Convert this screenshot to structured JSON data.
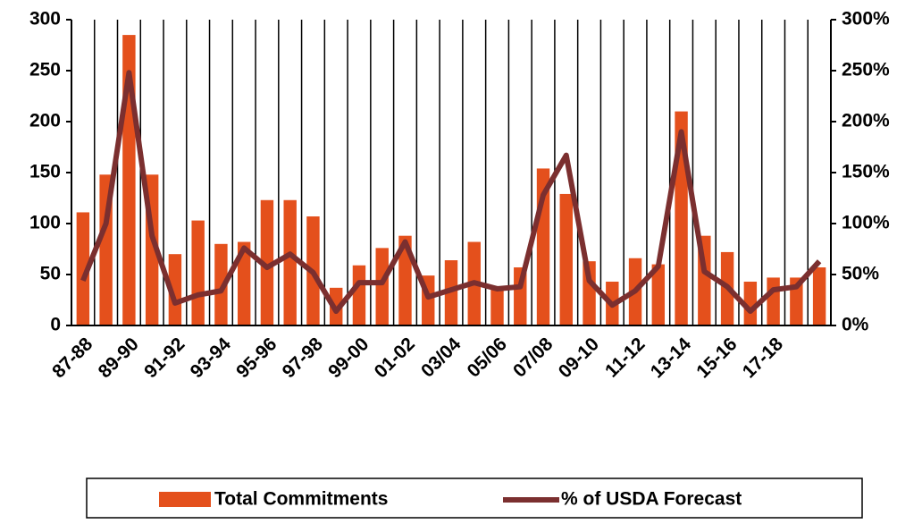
{
  "chart_data": {
    "type": "bar",
    "categories": [
      "87-88",
      null,
      "89-90",
      null,
      "91-92",
      null,
      "93-94",
      null,
      "95-96",
      null,
      "97-98",
      null,
      "99-00",
      null,
      "01-02",
      null,
      "03/04",
      null,
      "05/06",
      null,
      "07/08",
      null,
      "09-10",
      null,
      "11-12",
      null,
      "13-14",
      null,
      "15-16",
      null,
      "17-18",
      null,
      null
    ],
    "series": [
      {
        "name": "Total Commitments",
        "color": "#e4501c",
        "values": [
          111,
          148,
          285,
          148,
          70,
          103,
          80,
          82,
          123,
          123,
          107,
          37,
          59,
          76,
          88,
          49,
          64,
          82,
          38,
          57,
          154,
          129,
          63,
          43,
          66,
          60,
          210,
          88,
          72,
          43,
          47,
          47,
          57
        ]
      },
      {
        "name": "% of USDA Forecast",
        "color": "#7b2f2f",
        "axis": "y2",
        "values": [
          44,
          100,
          248,
          88,
          22,
          30,
          34,
          76,
          57,
          70,
          52,
          14,
          42,
          42,
          82,
          28,
          35,
          42,
          36,
          38,
          128,
          167,
          44,
          20,
          34,
          58,
          190,
          53,
          38,
          14,
          35,
          38,
          63
        ]
      }
    ],
    "ylim": [
      0,
      300
    ],
    "yticks": [
      0,
      50,
      100,
      150,
      200,
      250,
      300
    ],
    "y2lim": [
      0,
      300
    ],
    "y2ticks": [
      {
        "value": 0,
        "label": "0%"
      },
      {
        "value": 50,
        "label": "50%"
      },
      {
        "value": 100,
        "label": "100%"
      },
      {
        "value": 150,
        "label": "150%"
      },
      {
        "value": 200,
        "label": "200%"
      },
      {
        "value": 250,
        "label": "250%"
      },
      {
        "value": 300,
        "label": "300%"
      }
    ],
    "grid": true,
    "legend": "bottom"
  }
}
